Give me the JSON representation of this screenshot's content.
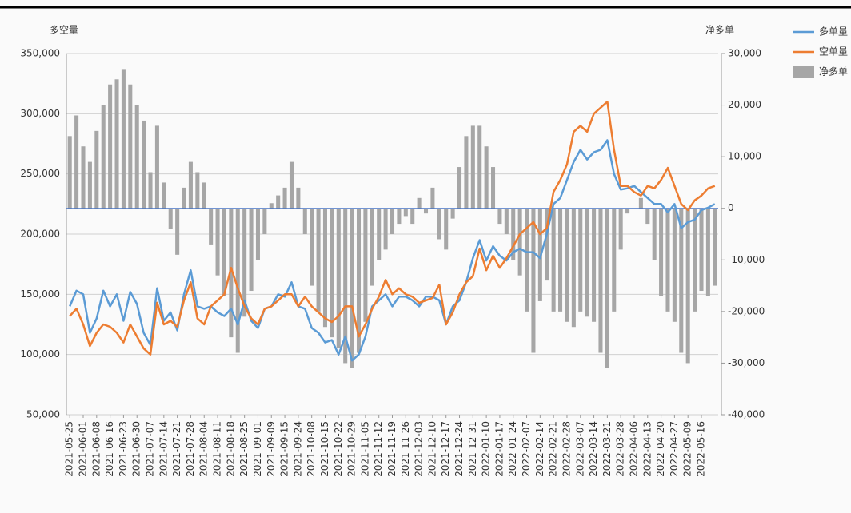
{
  "chart_data": {
    "type": "combo",
    "y_title": "多空量",
    "y2_title": "净多单",
    "categories": [
      "2021-05-25",
      null,
      "2021-06-01",
      null,
      "2021-06-08",
      null,
      "2021-06-16",
      null,
      "2021-06-23",
      null,
      "2021-06-30",
      null,
      "2021-07-07",
      null,
      "2021-07-14",
      null,
      "2021-07-21",
      null,
      "2021-07-28",
      null,
      "2021-08-04",
      null,
      "2021-08-11",
      null,
      "2021-08-18",
      null,
      "2021-08-25",
      null,
      "2021-09-01",
      null,
      "2021-09-09",
      null,
      "2021-09-15",
      null,
      "2021-09-24",
      null,
      "2021-10-08",
      null,
      "2021-10-15",
      null,
      "2021-10-22",
      null,
      "2021-10-29",
      null,
      "2021-11-05",
      null,
      "2021-11-12",
      null,
      "2021-11-19",
      null,
      "2021-11-26",
      null,
      "2021-12-03",
      null,
      "2021-12-10",
      null,
      "2021-12-17",
      null,
      "2021-12-24",
      null,
      "2021-12-31",
      null,
      "2022-01-10",
      null,
      "2022-01-17",
      null,
      "2022-01-24",
      null,
      "2022-02-07",
      null,
      "2022-02-14",
      null,
      "2022-02-21",
      null,
      "2022-02-28",
      null,
      "2022-03-07",
      null,
      "2022-03-14",
      null,
      "2022-03-21",
      null,
      "2022-03-28",
      null,
      "2022-04-06",
      null,
      "2022-04-13",
      null,
      "2022-04-20",
      null,
      "2022-04-27",
      null,
      "2022-05-09",
      null,
      "2022-05-16",
      null,
      null
    ],
    "series": [
      {
        "name": "多单量",
        "color": "#5b9bd5",
        "kind": "line",
        "values": [
          140000,
          153000,
          150000,
          118000,
          130000,
          153000,
          140000,
          150000,
          128000,
          152000,
          142000,
          118000,
          108000,
          155000,
          128000,
          135000,
          120000,
          150000,
          170000,
          140000,
          138000,
          140000,
          135000,
          132000,
          138000,
          125000,
          145000,
          128000,
          122000,
          138000,
          140000,
          150000,
          148000,
          160000,
          140000,
          138000,
          122000,
          118000,
          110000,
          112000,
          100000,
          115000,
          95000,
          100000,
          115000,
          140000,
          145000,
          150000,
          140000,
          148000,
          148000,
          145000,
          140000,
          148000,
          148000,
          145000,
          125000,
          140000,
          145000,
          160000,
          180000,
          195000,
          178000,
          190000,
          182000,
          178000,
          185000,
          188000,
          185000,
          185000,
          180000,
          200000,
          225000,
          230000,
          245000,
          260000,
          270000,
          262000,
          268000,
          270000,
          278000,
          250000,
          237000,
          238000,
          240000,
          235000,
          230000,
          225000,
          225000,
          218000,
          225000,
          205000,
          210000,
          212000,
          220000,
          222000,
          225000
        ]
      },
      {
        "name": "空单量",
        "color": "#ed7d31",
        "kind": "line",
        "values": [
          132000,
          138000,
          125000,
          107000,
          118000,
          125000,
          123000,
          118000,
          110000,
          125000,
          115000,
          105000,
          100000,
          143000,
          125000,
          128000,
          123000,
          145000,
          160000,
          130000,
          125000,
          140000,
          145000,
          150000,
          172000,
          155000,
          140000,
          130000,
          125000,
          138000,
          140000,
          145000,
          150000,
          150000,
          140000,
          148000,
          140000,
          135000,
          130000,
          127000,
          132000,
          140000,
          140000,
          115000,
          125000,
          138000,
          148000,
          162000,
          150000,
          155000,
          150000,
          148000,
          143000,
          145000,
          147000,
          158000,
          125000,
          135000,
          150000,
          160000,
          165000,
          188000,
          170000,
          182000,
          172000,
          180000,
          190000,
          200000,
          205000,
          210000,
          200000,
          205000,
          235000,
          245000,
          258000,
          285000,
          290000,
          285000,
          300000,
          305000,
          310000,
          270000,
          240000,
          240000,
          235000,
          232000,
          240000,
          238000,
          245000,
          255000,
          240000,
          225000,
          220000,
          228000,
          232000,
          238000,
          240000
        ]
      },
      {
        "name": "净多单",
        "color": "#a6a6a6",
        "kind": "bar",
        "axis": "y2",
        "values": [
          14000,
          18000,
          12000,
          9000,
          15000,
          20000,
          24000,
          25000,
          27000,
          24000,
          20000,
          17000,
          7000,
          16000,
          5000,
          -4000,
          -9000,
          4000,
          9000,
          7000,
          5000,
          -7000,
          -13000,
          -17000,
          -25000,
          -28000,
          -21000,
          -16000,
          -10000,
          -5000,
          1000,
          2500,
          4000,
          9000,
          4000,
          -5000,
          -15000,
          -20000,
          -23000,
          -25000,
          -27000,
          -30000,
          -31000,
          -28000,
          -22000,
          -15000,
          -10000,
          -8000,
          -5000,
          -3000,
          -1500,
          -3000,
          2000,
          -1000,
          4000,
          -6000,
          -8000,
          -2000,
          8000,
          14000,
          16000,
          16000,
          12000,
          8000,
          -3000,
          -5000,
          -10000,
          -13000,
          -20000,
          -28000,
          -18000,
          -14000,
          -20000,
          -20000,
          -22000,
          -23000,
          -20000,
          -21000,
          -22000,
          -28000,
          -31000,
          -20000,
          -8000,
          -1000,
          0,
          2000,
          -3000,
          -10000,
          -17000,
          -20000,
          -22000,
          -28000,
          -30000,
          -20000,
          -16000,
          -17000,
          -15000
        ]
      }
    ],
    "ylim": [
      50000,
      350000
    ],
    "yticks": [
      {
        "value": 50000,
        "label": "50,000"
      },
      {
        "value": 100000,
        "label": "100,000"
      },
      {
        "value": 150000,
        "label": "150,000"
      },
      {
        "value": 200000,
        "label": "200,000"
      },
      {
        "value": 250000,
        "label": "250,000"
      },
      {
        "value": 300000,
        "label": "300,000"
      },
      {
        "value": 350000,
        "label": "350,000"
      }
    ],
    "y2lim": [
      -40000,
      30000
    ],
    "y2ticks": [
      {
        "value": -40000,
        "label": "-40,000"
      },
      {
        "value": -30000,
        "label": "-30,000"
      },
      {
        "value": -20000,
        "label": "-20,000"
      },
      {
        "value": -10000,
        "label": "-10,000"
      },
      0,
      {
        "value": 10000,
        "label": "10,000"
      },
      {
        "value": 20000,
        "label": "20,000"
      },
      {
        "value": 30000,
        "label": "30,000"
      }
    ],
    "grid": true
  }
}
